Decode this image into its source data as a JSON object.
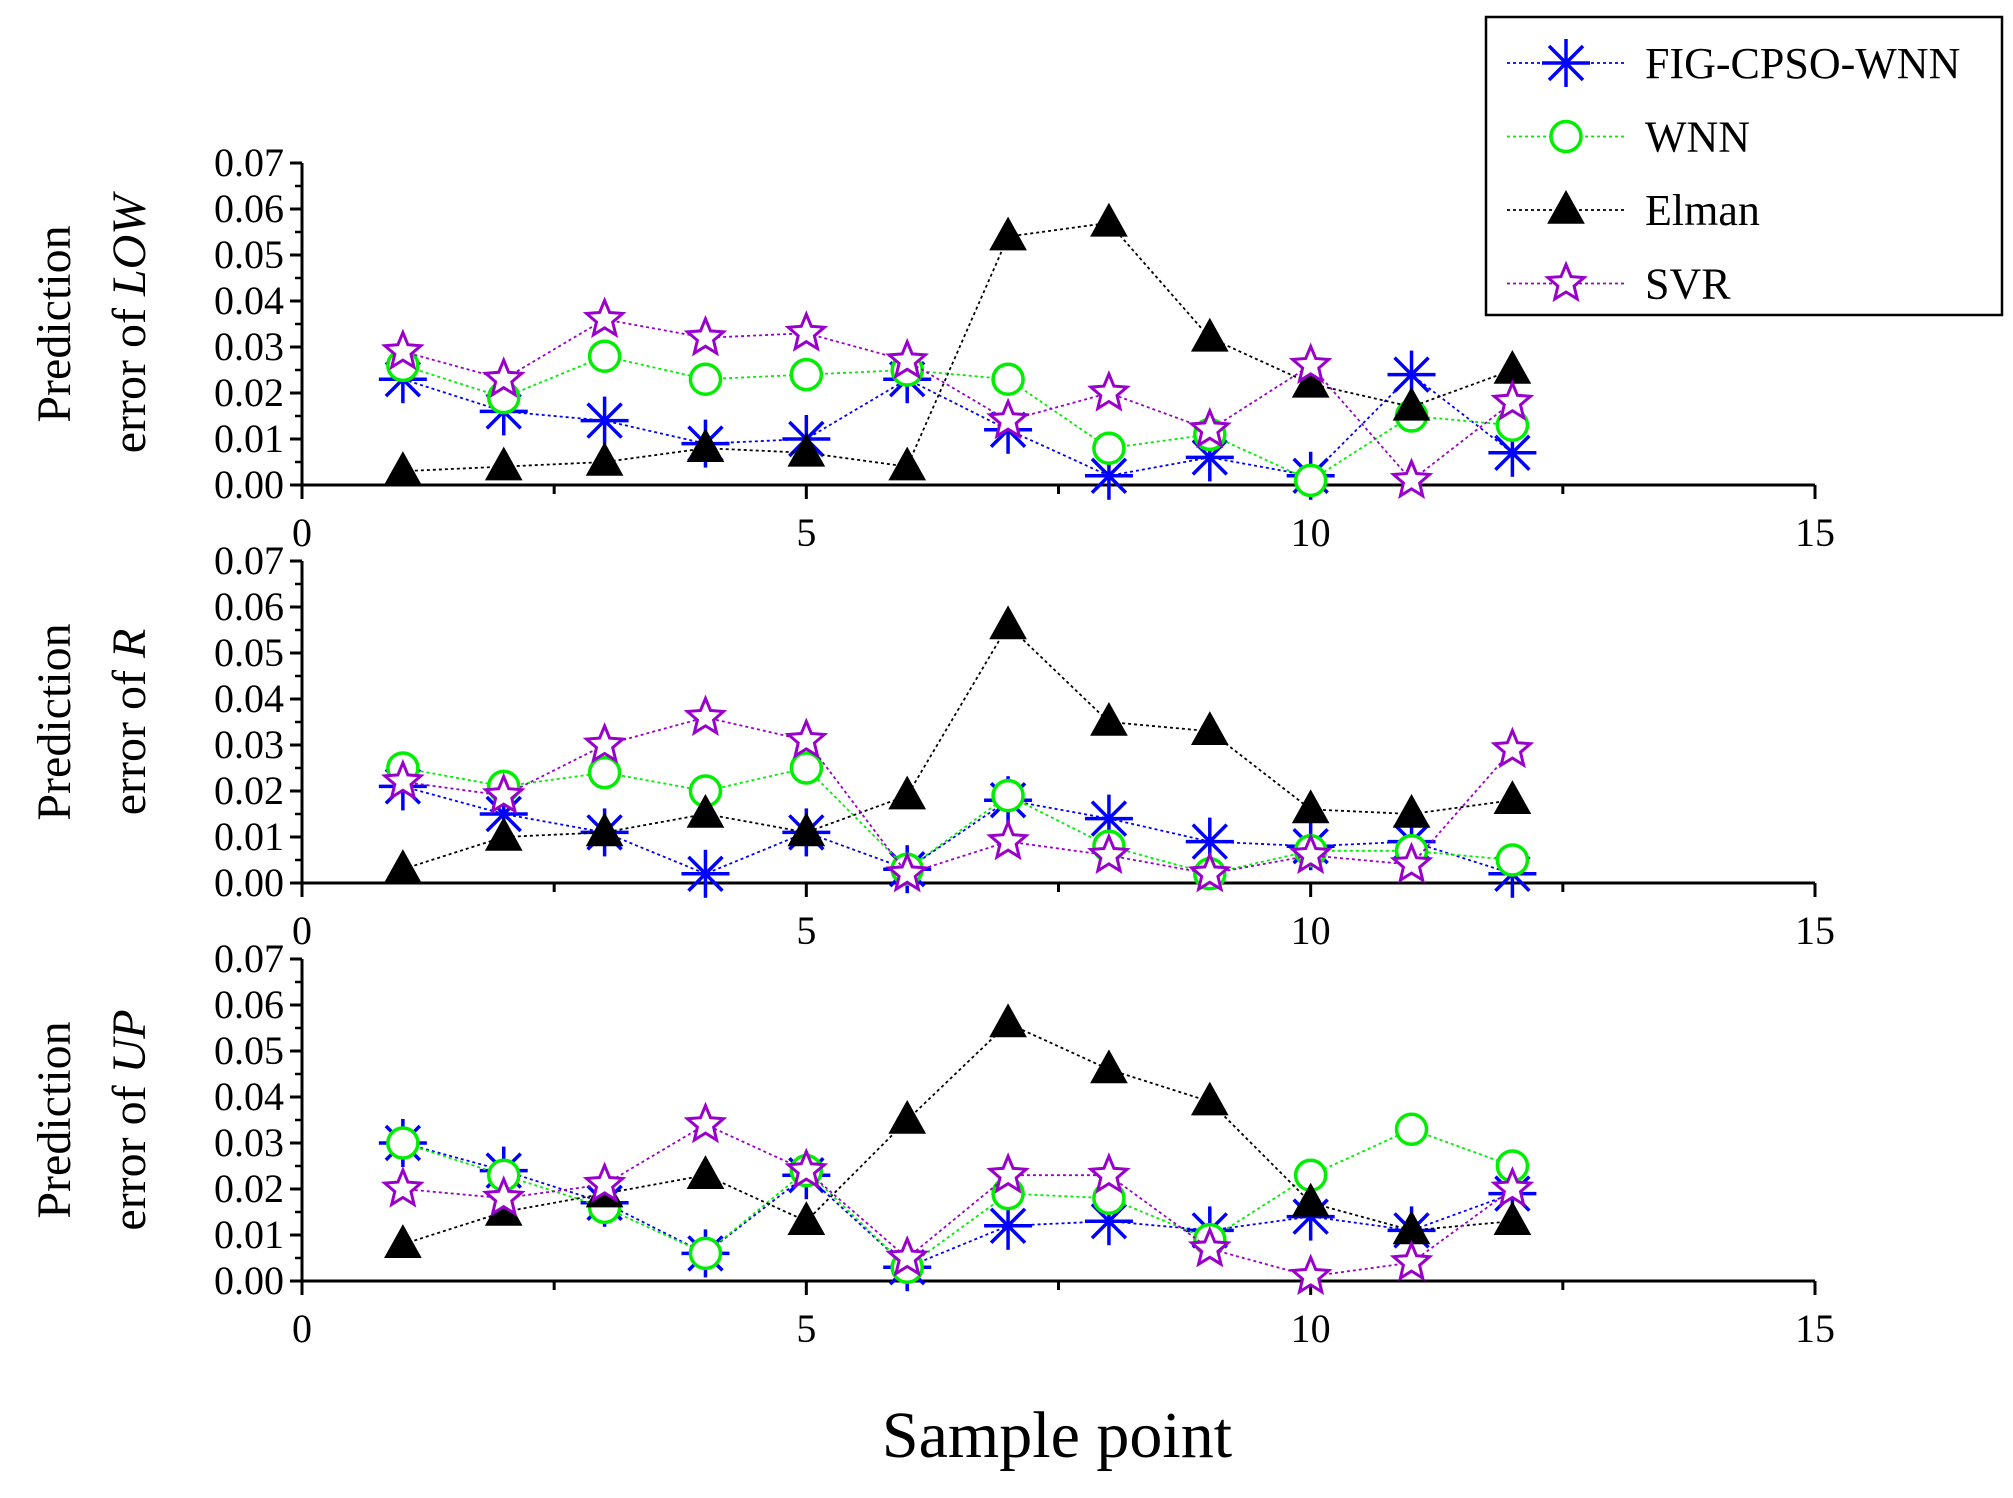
{
  "chart_data": {
    "type": "line",
    "xlabel": "Sample point",
    "xlim": [
      0,
      15
    ],
    "x_ticks": [
      0,
      5,
      10,
      15
    ],
    "ylim": [
      0,
      0.07
    ],
    "y_ticks": [
      "0.00",
      "0.01",
      "0.02",
      "0.03",
      "0.04",
      "0.05",
      "0.06",
      "0.07"
    ],
    "x": [
      1,
      2,
      3,
      4,
      5,
      6,
      7,
      8,
      9,
      10,
      11,
      12
    ],
    "legend": {
      "position": "top-right",
      "entries": [
        {
          "name": "FIG-CPSO-WNN",
          "color": "#0000ff",
          "marker": "asterisk"
        },
        {
          "name": "WNN",
          "color": "#00ee00",
          "marker": "circle"
        },
        {
          "name": "Elman",
          "color": "#000000",
          "marker": "triangle"
        },
        {
          "name": "SVR",
          "color": "#9900cc",
          "marker": "star"
        }
      ]
    },
    "panels": [
      {
        "ylabel_line1": "Prediction",
        "ylabel_line2_prefix": "error of ",
        "ylabel_var": "LOW",
        "series": [
          {
            "name": "FIG-CPSO-WNN",
            "values": [
              0.023,
              0.016,
              0.014,
              0.009,
              0.01,
              0.023,
              0.012,
              0.002,
              0.006,
              0.002,
              0.024,
              0.007
            ]
          },
          {
            "name": "WNN",
            "values": [
              0.026,
              0.019,
              0.028,
              0.023,
              0.024,
              0.025,
              0.023,
              0.008,
              0.011,
              0.001,
              0.015,
              0.013
            ]
          },
          {
            "name": "Elman",
            "values": [
              0.003,
              0.004,
              0.005,
              0.008,
              0.007,
              0.004,
              0.054,
              0.057,
              0.032,
              0.022,
              0.017,
              0.025
            ]
          },
          {
            "name": "SVR",
            "values": [
              0.029,
              0.023,
              0.036,
              0.032,
              0.033,
              0.027,
              0.014,
              0.02,
              0.012,
              0.026,
              0.001,
              0.018
            ]
          }
        ]
      },
      {
        "ylabel_line1": "Prediction",
        "ylabel_line2_prefix": "error of ",
        "ylabel_var": "R",
        "series": [
          {
            "name": "FIG-CPSO-WNN",
            "values": [
              0.021,
              0.015,
              0.011,
              0.002,
              0.011,
              0.003,
              0.018,
              0.014,
              0.009,
              0.008,
              0.009,
              0.002
            ]
          },
          {
            "name": "WNN",
            "values": [
              0.025,
              0.021,
              0.024,
              0.02,
              0.025,
              0.003,
              0.019,
              0.008,
              0.002,
              0.007,
              0.007,
              0.005
            ]
          },
          {
            "name": "Elman",
            "values": [
              0.003,
              0.01,
              0.011,
              0.015,
              0.011,
              0.019,
              0.056,
              0.035,
              0.033,
              0.016,
              0.015,
              0.018
            ]
          },
          {
            "name": "SVR",
            "values": [
              0.022,
              0.019,
              0.03,
              0.036,
              0.031,
              0.002,
              0.009,
              0.006,
              0.002,
              0.006,
              0.004,
              0.029
            ]
          }
        ]
      },
      {
        "ylabel_line1": "Prediction",
        "ylabel_line2_prefix": "error of ",
        "ylabel_var": "UP",
        "series": [
          {
            "name": "FIG-CPSO-WNN",
            "values": [
              0.03,
              0.024,
              0.017,
              0.006,
              0.023,
              0.003,
              0.012,
              0.013,
              0.011,
              0.014,
              0.011,
              0.019
            ]
          },
          {
            "name": "WNN",
            "values": [
              0.03,
              0.023,
              0.016,
              0.006,
              0.024,
              0.003,
              0.019,
              0.018,
              0.009,
              0.023,
              0.033,
              0.025
            ]
          },
          {
            "name": "Elman",
            "values": [
              0.008,
              0.015,
              0.019,
              0.023,
              0.013,
              0.035,
              0.056,
              0.046,
              0.039,
              0.017,
              0.011,
              0.013
            ]
          },
          {
            "name": "SVR",
            "values": [
              0.02,
              0.018,
              0.021,
              0.034,
              0.024,
              0.005,
              0.023,
              0.023,
              0.007,
              0.001,
              0.004,
              0.02
            ]
          }
        ]
      }
    ]
  }
}
